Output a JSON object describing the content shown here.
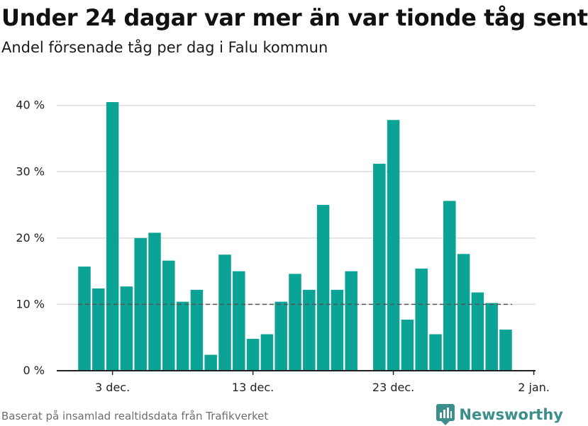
{
  "header": {
    "title": "Under 24 dagar var mer än var tionde tåg sent",
    "subtitle": "Andel försenade tåg per dag i Falu kommun"
  },
  "footer": {
    "source": "Baserat på insamlad realtidsdata från Trafikverket",
    "brand": "Newsworthy",
    "brand_icon": "bar-chart-logo-icon"
  },
  "colors": {
    "bar": "#0aa396",
    "axis": "#222222",
    "grid": "#dddddd",
    "reference_line": "#555555",
    "brand": "#3a8f8a"
  },
  "chart_data": {
    "type": "bar",
    "title": "Under 24 dagar var mer än var tionde tåg sent",
    "subtitle": "Andel försenade tåg per dag i Falu kommun",
    "xlabel": "",
    "ylabel": "",
    "x": [
      "2023-12-01",
      "2023-12-02",
      "2023-12-03",
      "2023-12-04",
      "2023-12-05",
      "2023-12-06",
      "2023-12-07",
      "2023-12-08",
      "2023-12-09",
      "2023-12-10",
      "2023-12-11",
      "2023-12-12",
      "2023-12-13",
      "2023-12-14",
      "2023-12-15",
      "2023-12-16",
      "2023-12-17",
      "2023-12-18",
      "2023-12-19",
      "2023-12-20",
      "2023-12-21",
      "2023-12-22",
      "2023-12-23",
      "2023-12-24",
      "2023-12-25",
      "2023-12-26",
      "2023-12-27",
      "2023-12-28",
      "2023-12-29",
      "2023-12-30",
      "2023-12-31"
    ],
    "values": [
      15.7,
      12.4,
      40.5,
      12.7,
      20.0,
      20.8,
      16.6,
      10.4,
      12.2,
      2.4,
      17.5,
      15.0,
      4.8,
      5.5,
      10.4,
      14.6,
      12.2,
      25.0,
      12.2,
      15.0,
      null,
      31.2,
      37.8,
      7.7,
      15.4,
      5.5,
      25.6,
      17.6,
      11.8,
      10.2,
      6.2
    ],
    "ylim": [
      0,
      42
    ],
    "yticks": [
      0,
      10,
      20,
      30,
      40
    ],
    "ytick_labels": [
      "0 %",
      "10 %",
      "20 %",
      "30 %",
      "40 %"
    ],
    "xticks": [
      "2023-12-03",
      "2023-12-13",
      "2023-12-23",
      "2024-01-02"
    ],
    "xtick_labels": [
      "3 dec.",
      "13 dec.",
      "23 dec.",
      "2 jan."
    ],
    "reference_line": 10,
    "grid": true,
    "legend": "none"
  }
}
